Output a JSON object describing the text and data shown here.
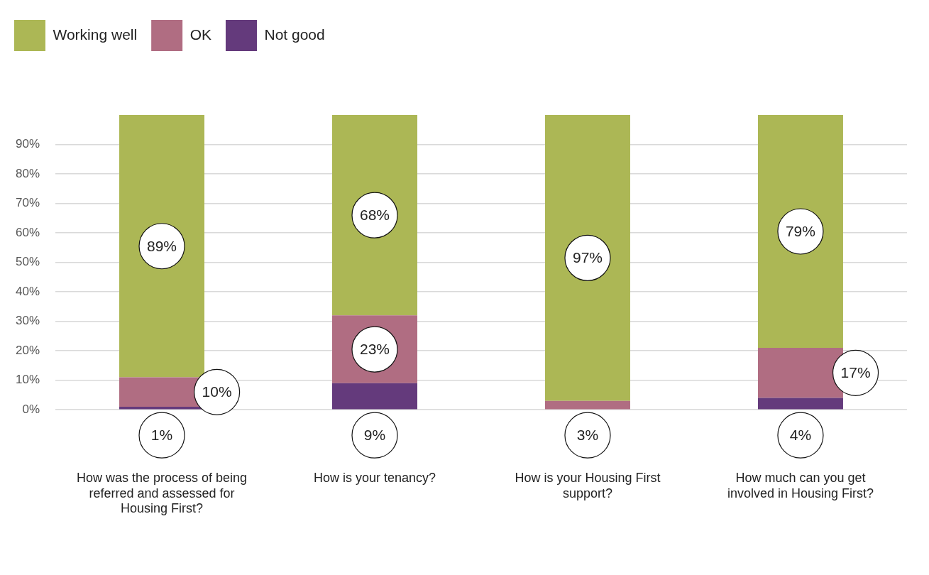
{
  "chart_data": {
    "type": "bar",
    "stacked": true,
    "categories": [
      "How was the process of being referred and assessed for Housing First?",
      "How is your tenancy?",
      "How is your Housing First support?",
      "How much can you get involved in Housing First?"
    ],
    "series": [
      {
        "name": "Not good",
        "color": "#643a7c",
        "values": [
          1,
          9,
          null,
          4
        ],
        "value_labels": [
          "1%",
          "9%",
          null,
          "4%"
        ]
      },
      {
        "name": "OK",
        "color": "#b06d82",
        "values": [
          10,
          23,
          3,
          17
        ],
        "value_labels": [
          "10%",
          "23%",
          "3%",
          "17%"
        ]
      },
      {
        "name": "Working well",
        "color": "#acb755",
        "values": [
          89,
          68,
          97,
          79
        ],
        "value_labels": [
          "89%",
          "68%",
          "97%",
          "79%"
        ]
      }
    ],
    "ylim": [
      0,
      100
    ],
    "yticks": [
      {
        "value": 0,
        "label": "0%"
      },
      {
        "value": 10,
        "label": "10%"
      },
      {
        "value": 20,
        "label": "20%"
      },
      {
        "value": 30,
        "label": "30%"
      },
      {
        "value": 40,
        "label": "40%"
      },
      {
        "value": 50,
        "label": "50%"
      },
      {
        "value": 60,
        "label": "60%"
      },
      {
        "value": 70,
        "label": "70%"
      },
      {
        "value": 80,
        "label": "80%"
      },
      {
        "value": 90,
        "label": "90%"
      }
    ],
    "grid": "y",
    "legend": "top left"
  }
}
